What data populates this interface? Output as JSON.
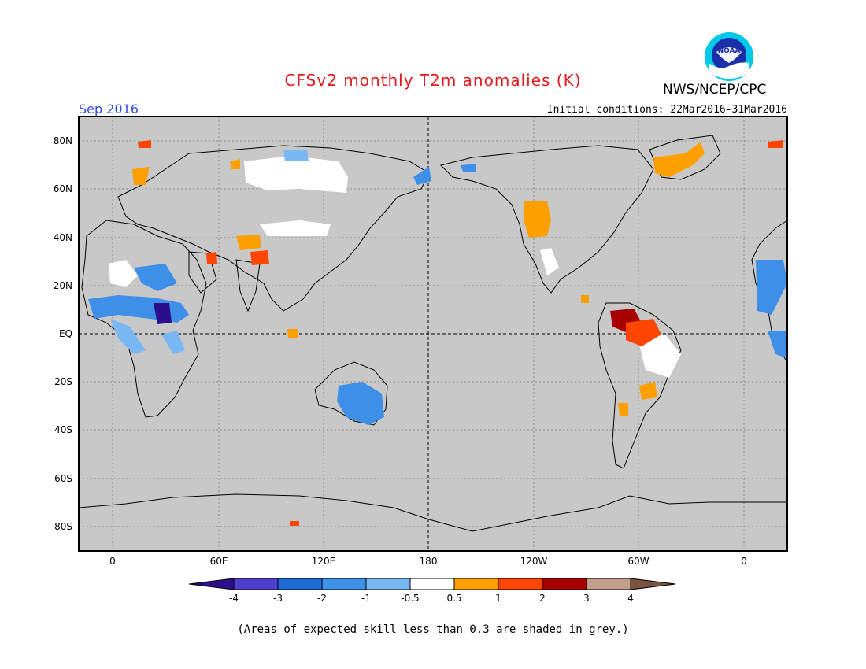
{
  "header": {
    "title": "CFSv2 monthly T2m anomalies (K)",
    "agency": "NWS/NCEP/CPC",
    "logo_text": "NOAA",
    "target_month": "Sep 2016",
    "initial_conditions": "Initial conditions: 22Mar2016-31Mar2016"
  },
  "map": {
    "latitude_labels": [
      "80N",
      "60N",
      "40N",
      "20N",
      "EQ",
      "20S",
      "40S",
      "60S",
      "80S"
    ],
    "longitude_labels": [
      "0",
      "60E",
      "120E",
      "180",
      "120W",
      "60W",
      "0"
    ],
    "no_skill_color": "#c8c8c8"
  },
  "colorbar": {
    "tick_labels": [
      "-4",
      "-3",
      "-2",
      "-1",
      "-0.5",
      "0.5",
      "1",
      "2",
      "3",
      "4"
    ],
    "colors": [
      "#2b0e8c",
      "#4f3fd1",
      "#1f6bd6",
      "#3d8fe8",
      "#7ab7f5",
      "#ffffff",
      "#ffa000",
      "#ff4500",
      "#a80000",
      "#c39e8c",
      "#7b5340"
    ]
  },
  "footnote": "(Areas of expected skill less than 0.3 are shaded in grey.)"
}
